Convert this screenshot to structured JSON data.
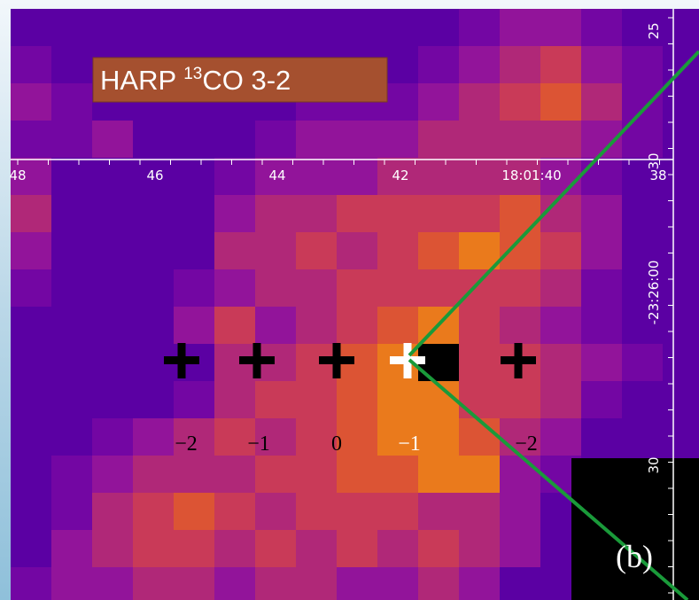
{
  "title": {
    "main": "HARP",
    "superscript": "13",
    "rest": "CO 3-2"
  },
  "top_axis": {
    "labels": [
      "48",
      "46",
      "44",
      "42",
      "18:01:40",
      "38"
    ]
  },
  "right_axis": {
    "labels": [
      "25",
      "30",
      "-23:26:00",
      "30"
    ]
  },
  "markers": {
    "labels": [
      "−2",
      "−1",
      "0",
      "−1",
      "−2"
    ]
  },
  "panel_label": "(b)"
}
